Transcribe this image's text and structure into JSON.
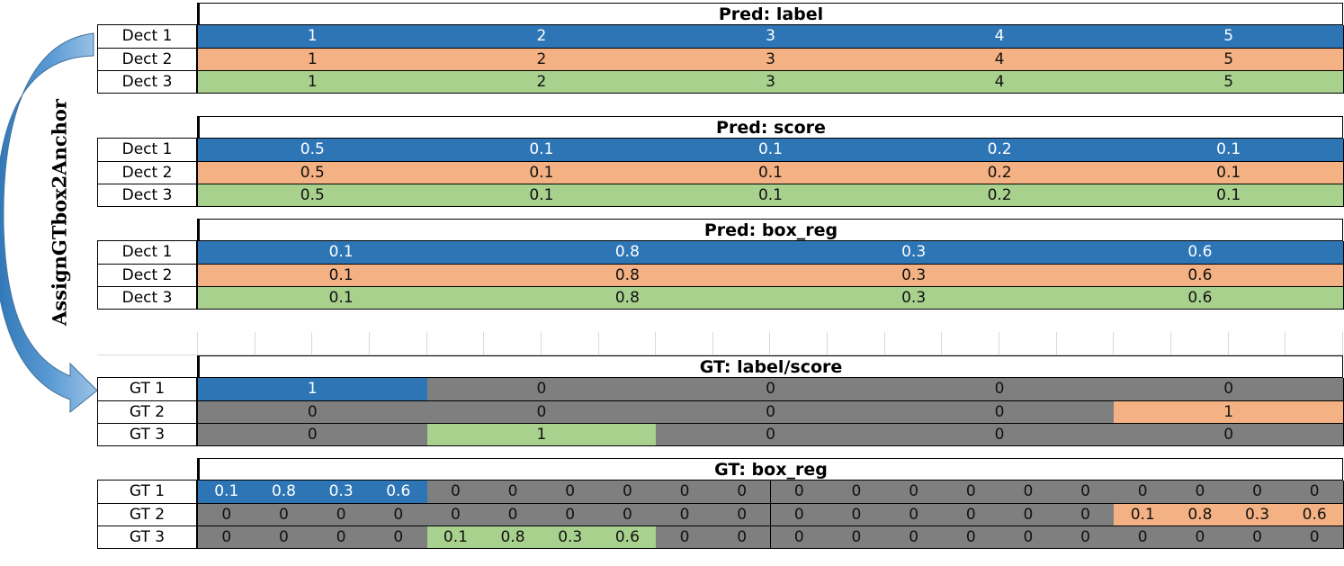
{
  "colors": {
    "det1": "#2e75b6",
    "det2": "#f4b183",
    "det3": "#a9d18e",
    "bg": "#7f7f7f",
    "arrow_light": "#9dc3e6",
    "arrow_dark": "#2e75b6"
  },
  "side_label": "AssignGTbox2Anchor",
  "sections": [
    {
      "header": "Pred: label",
      "rows": [
        {
          "label": "Dect 1",
          "color": "det1",
          "cells": [
            "1",
            "2",
            "3",
            "4",
            "5"
          ]
        },
        {
          "label": "Dect 2",
          "color": "det2",
          "cells": [
            "1",
            "2",
            "3",
            "4",
            "5"
          ]
        },
        {
          "label": "Dect 3",
          "color": "det3",
          "cells": [
            "1",
            "2",
            "3",
            "4",
            "5"
          ]
        }
      ]
    },
    {
      "header": "Pred: score",
      "rows": [
        {
          "label": "Dect 1",
          "color": "det1",
          "cells": [
            "0.5",
            "0.1",
            "0.1",
            "0.2",
            "0.1"
          ]
        },
        {
          "label": "Dect 2",
          "color": "det2",
          "cells": [
            "0.5",
            "0.1",
            "0.1",
            "0.2",
            "0.1"
          ]
        },
        {
          "label": "Dect 3",
          "color": "det3",
          "cells": [
            "0.5",
            "0.1",
            "0.1",
            "0.2",
            "0.1"
          ]
        }
      ]
    },
    {
      "header": "Pred: box_reg",
      "rows": [
        {
          "label": "Dect 1",
          "color": "det1",
          "cells": [
            "0.1",
            "0.8",
            "0.3",
            "0.6"
          ]
        },
        {
          "label": "Dect 2",
          "color": "det2",
          "cells": [
            "0.1",
            "0.8",
            "0.3",
            "0.6"
          ]
        },
        {
          "label": "Dect 3",
          "color": "det3",
          "cells": [
            "0.1",
            "0.8",
            "0.3",
            "0.6"
          ]
        }
      ]
    },
    {
      "header": "GT: label/score",
      "rows": [
        {
          "label": "GT 1",
          "cells": [
            "1",
            "0",
            "0",
            "0",
            "0"
          ],
          "colors": [
            "det1",
            "bg",
            "bg",
            "bg",
            "bg"
          ]
        },
        {
          "label": "GT 2",
          "cells": [
            "0",
            "0",
            "0",
            "0",
            "1"
          ],
          "colors": [
            "bg",
            "bg",
            "bg",
            "bg",
            "det2"
          ]
        },
        {
          "label": "GT 3",
          "cells": [
            "0",
            "1",
            "0",
            "0",
            "0"
          ],
          "colors": [
            "bg",
            "det3",
            "bg",
            "bg",
            "bg"
          ]
        }
      ]
    },
    {
      "header": "GT: box_reg",
      "rows": [
        {
          "label": "GT 1",
          "cells": [
            "0.1",
            "0.8",
            "0.3",
            "0.6",
            "0",
            "0",
            "0",
            "0",
            "0",
            "0",
            "0",
            "0",
            "0",
            "0",
            "0",
            "0",
            "0",
            "0",
            "0",
            "0"
          ],
          "colors": [
            "det1",
            "det1",
            "det1",
            "det1",
            "bg",
            "bg",
            "bg",
            "bg",
            "bg",
            "bg",
            "bg",
            "bg",
            "bg",
            "bg",
            "bg",
            "bg",
            "bg",
            "bg",
            "bg",
            "bg"
          ]
        },
        {
          "label": "GT 2",
          "cells": [
            "0",
            "0",
            "0",
            "0",
            "0",
            "0",
            "0",
            "0",
            "0",
            "0",
            "0",
            "0",
            "0",
            "0",
            "0",
            "0",
            "0.1",
            "0.8",
            "0.3",
            "0.6"
          ],
          "colors": [
            "bg",
            "bg",
            "bg",
            "bg",
            "bg",
            "bg",
            "bg",
            "bg",
            "bg",
            "bg",
            "bg",
            "bg",
            "bg",
            "bg",
            "bg",
            "bg",
            "det2",
            "det2",
            "det2",
            "det2"
          ]
        },
        {
          "label": "GT 3",
          "cells": [
            "0",
            "0",
            "0",
            "0",
            "0.1",
            "0.8",
            "0.3",
            "0.6",
            "0",
            "0",
            "0",
            "0",
            "0",
            "0",
            "0",
            "0",
            "0",
            "0",
            "0",
            "0"
          ],
          "colors": [
            "bg",
            "bg",
            "bg",
            "bg",
            "det3",
            "det3",
            "det3",
            "det3",
            "bg",
            "bg",
            "bg",
            "bg",
            "bg",
            "bg",
            "bg",
            "bg",
            "bg",
            "bg",
            "bg",
            "bg"
          ]
        }
      ]
    }
  ]
}
